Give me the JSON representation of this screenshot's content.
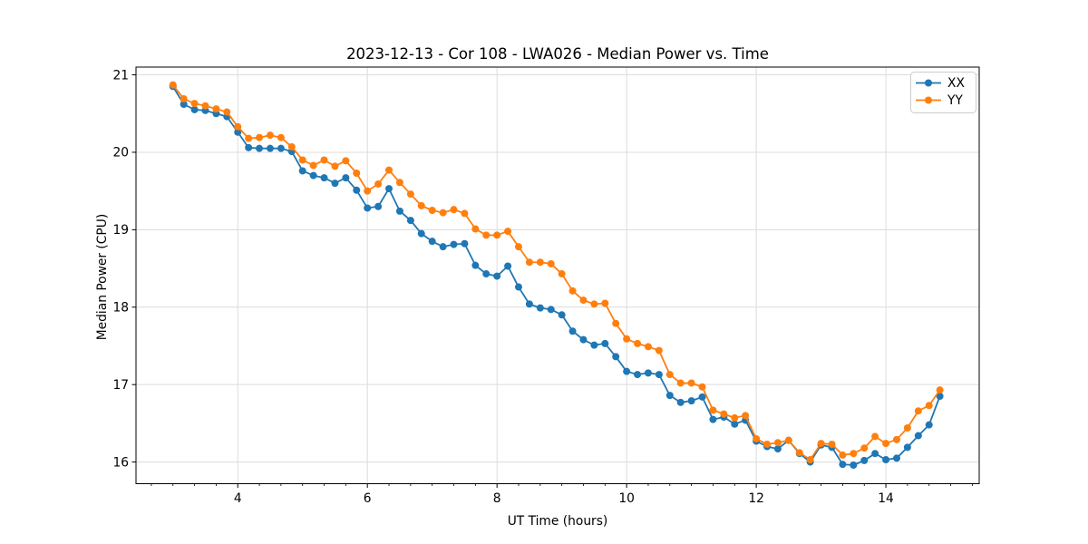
{
  "figure": {
    "background": "#ffffff",
    "grid_color": "#dcdcdc",
    "spine_color": "#000000"
  },
  "chart_data": {
    "type": "line",
    "title": "2023-12-13 - Cor 108 - LWA026 - Median Power vs. Time",
    "xlabel": "UT Time (hours)",
    "ylabel": "Median Power (CPU)",
    "xlim": [
      2.43,
      15.44
    ],
    "ylim": [
      15.72,
      21.1
    ],
    "x_ticks": [
      4,
      6,
      8,
      10,
      12,
      14
    ],
    "y_ticks": [
      16,
      17,
      18,
      19,
      20,
      21
    ],
    "x_minor_step_hours": 0.3333,
    "grid": true,
    "legend_position": "upper right",
    "x": [
      3.0,
      3.167,
      3.333,
      3.5,
      3.667,
      3.833,
      4.0,
      4.167,
      4.333,
      4.5,
      4.667,
      4.833,
      5.0,
      5.167,
      5.333,
      5.5,
      5.667,
      5.833,
      6.0,
      6.167,
      6.333,
      6.5,
      6.667,
      6.833,
      7.0,
      7.167,
      7.333,
      7.5,
      7.667,
      7.833,
      8.0,
      8.167,
      8.333,
      8.5,
      8.667,
      8.833,
      9.0,
      9.167,
      9.333,
      9.5,
      9.667,
      9.833,
      10.0,
      10.167,
      10.333,
      10.5,
      10.667,
      10.833,
      11.0,
      11.167,
      11.333,
      11.5,
      11.667,
      11.833,
      12.0,
      12.167,
      12.333,
      12.5,
      12.667,
      12.833,
      13.0,
      13.167,
      13.333,
      13.5,
      13.667,
      13.833,
      14.0,
      14.167,
      14.333,
      14.5,
      14.667,
      14.833
    ],
    "series": [
      {
        "name": "XX",
        "color": "#1f77b4",
        "values": [
          20.85,
          20.62,
          20.55,
          20.54,
          20.5,
          20.46,
          20.26,
          20.06,
          20.05,
          20.05,
          20.05,
          20.01,
          19.76,
          19.7,
          19.67,
          19.6,
          19.67,
          19.51,
          19.28,
          19.3,
          19.53,
          19.24,
          19.12,
          18.95,
          18.85,
          18.78,
          18.81,
          18.82,
          18.54,
          18.43,
          18.4,
          18.53,
          18.26,
          18.04,
          17.99,
          17.97,
          17.9,
          17.69,
          17.58,
          17.51,
          17.53,
          17.36,
          17.17,
          17.13,
          17.15,
          17.13,
          16.86,
          16.77,
          16.79,
          16.84,
          16.55,
          16.58,
          16.49,
          16.54,
          16.27,
          16.2,
          16.17,
          16.28,
          16.11,
          16.0,
          16.22,
          16.19,
          15.97,
          15.96,
          16.02,
          16.11,
          16.03,
          16.05,
          16.19,
          16.34,
          16.48,
          16.85
        ]
      },
      {
        "name": "YY",
        "color": "#ff7f0e",
        "values": [
          20.87,
          20.69,
          20.63,
          20.6,
          20.56,
          20.52,
          20.33,
          20.18,
          20.19,
          20.22,
          20.19,
          20.07,
          19.9,
          19.83,
          19.9,
          19.82,
          19.89,
          19.73,
          19.5,
          19.59,
          19.77,
          19.61,
          19.46,
          19.31,
          19.25,
          19.22,
          19.26,
          19.21,
          19.01,
          18.93,
          18.93,
          18.98,
          18.78,
          18.58,
          18.58,
          18.56,
          18.43,
          18.21,
          18.09,
          18.04,
          18.05,
          17.79,
          17.59,
          17.53,
          17.49,
          17.44,
          17.13,
          17.02,
          17.02,
          16.97,
          16.67,
          16.62,
          16.57,
          16.6,
          16.3,
          16.23,
          16.25,
          16.28,
          16.12,
          16.03,
          16.24,
          16.23,
          16.09,
          16.11,
          16.18,
          16.33,
          16.24,
          16.29,
          16.44,
          16.66,
          16.73,
          16.93
        ]
      }
    ]
  }
}
